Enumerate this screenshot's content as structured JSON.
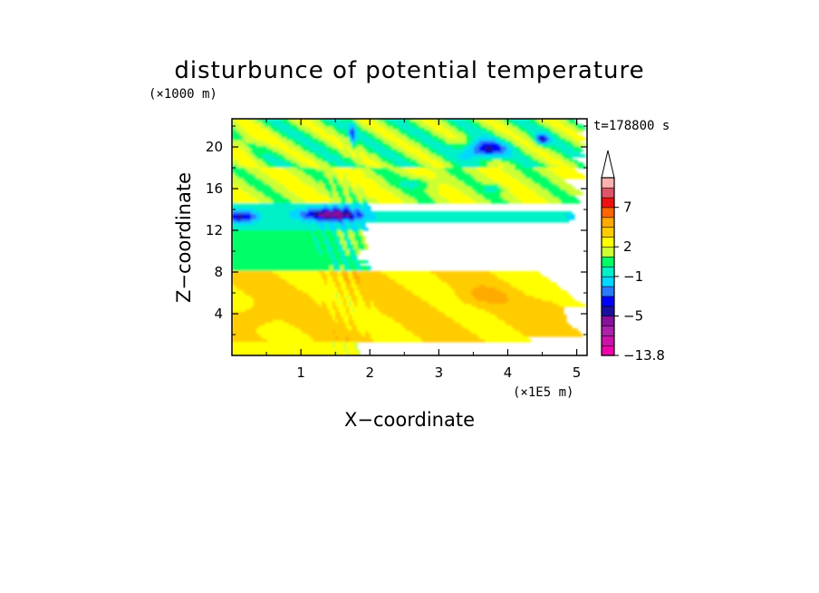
{
  "chart_data": {
    "type": "heatmap",
    "title": "disturbunce of potential temperature",
    "xlabel": "X−coordinate",
    "ylabel": "Z−coordinate",
    "x_unit": "(×1E5 m)",
    "y_unit": "(×1000 m)",
    "time_label": "t=178800 s",
    "xlim": [
      0,
      5.15
    ],
    "ylim": [
      0,
      22.7
    ],
    "x_ticks": [
      "1",
      "2",
      "3",
      "4",
      "5"
    ],
    "y_ticks": [
      "4",
      "8",
      "12",
      "16",
      "20"
    ],
    "x_tick_values": [
      1,
      2,
      3,
      4,
      5
    ],
    "y_tick_values": [
      4,
      8,
      12,
      16,
      20
    ],
    "colorbar": {
      "labels": [
        "7",
        "2",
        "−1",
        "−5",
        "−13.8"
      ],
      "label_levels": [
        7,
        2,
        -1,
        -5,
        -13.8
      ],
      "levels": [
        -13.8,
        -11,
        -9,
        -7,
        -5,
        -4,
        -3,
        -2,
        -1,
        0,
        1,
        2,
        3,
        4,
        5,
        7,
        9,
        11
      ],
      "colors": [
        "#ee00aa",
        "#cc11aa",
        "#aa22aa",
        "#881199",
        "#1b0f9e",
        "#0000ff",
        "#2a7bff",
        "#00d8ff",
        "#00f0c8",
        "#00ff66",
        "#ccff33",
        "#ffff00",
        "#ffcc00",
        "#ffaa00",
        "#ff6600",
        "#ee1111",
        "#dd5566",
        "#ffb0b0"
      ],
      "max_extension": true
    },
    "field_description": "bands"
  }
}
